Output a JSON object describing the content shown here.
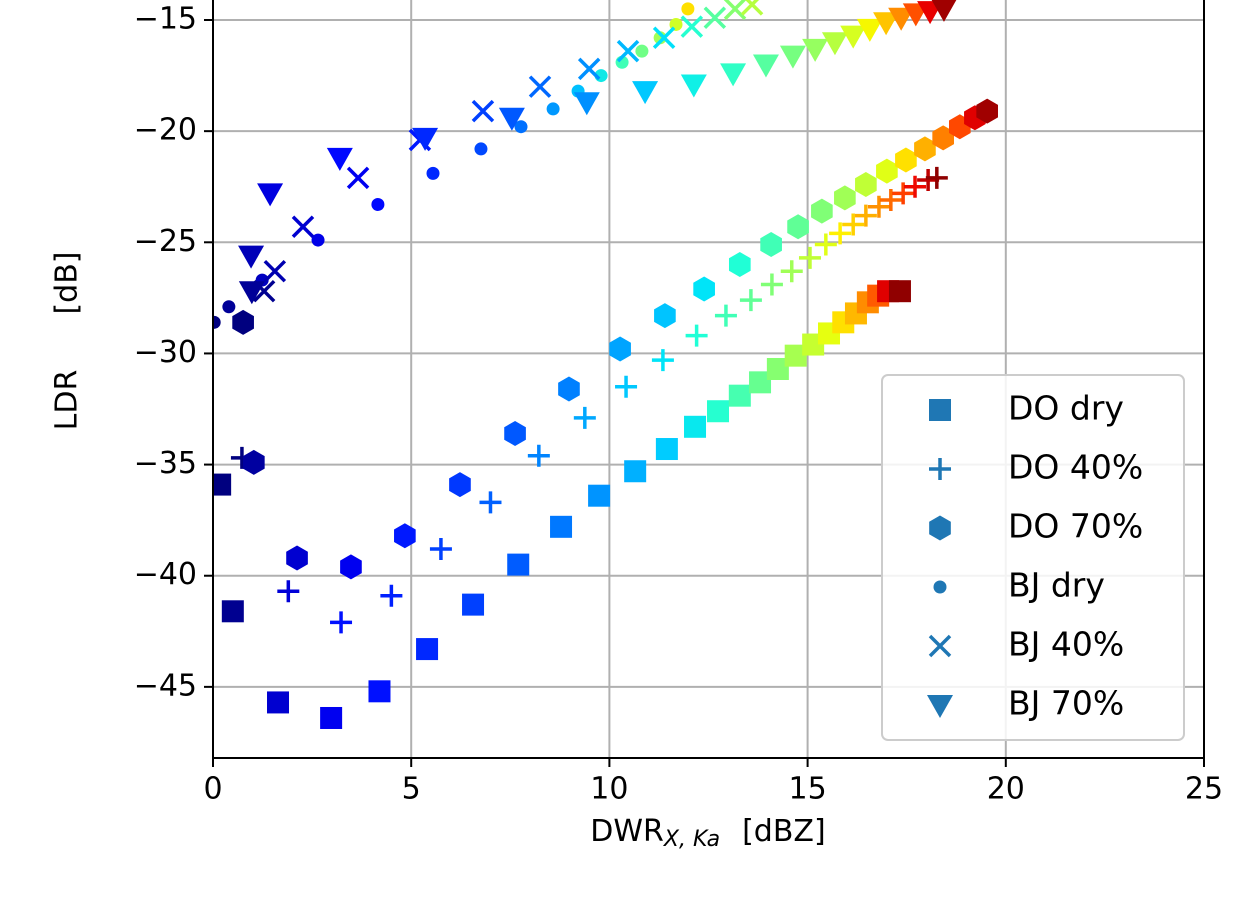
{
  "chart_data": {
    "type": "scatter",
    "xlabel": {
      "main": "DWR",
      "sub": "X, Ka",
      "unit": "[dBZ]"
    },
    "ylabel": {
      "main": "LDR",
      "unit": "[dB]"
    },
    "xlim": [
      0,
      25
    ],
    "ylim": [
      -48.2,
      -14.1
    ],
    "xticks": [
      0,
      5,
      10,
      15,
      20,
      25
    ],
    "yticks": [
      {
        "value": -45,
        "label": "−45"
      },
      {
        "value": -40,
        "label": "−40"
      },
      {
        "value": -35,
        "label": "−35"
      },
      {
        "value": -30,
        "label": "−30"
      },
      {
        "value": -25,
        "label": "−25"
      },
      {
        "value": -20,
        "label": "−20"
      },
      {
        "value": -15,
        "label": "−15"
      }
    ],
    "grid": true,
    "legend": "lower right",
    "series": [
      {
        "name": "DO dry",
        "marker": "square",
        "color": "#1f77b4",
        "x": [
          0.18,
          0.5,
          1.64,
          2.98,
          4.2,
          5.4,
          6.56,
          7.7,
          8.78,
          9.74,
          10.65,
          11.45,
          12.16,
          12.74,
          13.29,
          13.8,
          14.25,
          14.7,
          15.14,
          15.54,
          15.9,
          16.22,
          16.52,
          16.78,
          17.03,
          17.33
        ],
        "values": [
          -35.9,
          -41.6,
          -45.7,
          -46.4,
          -45.2,
          -43.3,
          -41.3,
          -39.5,
          -37.8,
          -36.4,
          -35.3,
          -34.3,
          -33.3,
          -32.6,
          -31.9,
          -31.3,
          -30.7,
          -30.1,
          -29.6,
          -29.1,
          -28.6,
          -28.2,
          -27.7,
          -27.4,
          -27.2,
          -27.2
        ],
        "colors": [
          "#00007f",
          "#000090",
          "#0000d0",
          "#0000f0",
          "#0010ff",
          "#0028ff",
          "#0040ff",
          "#005cff",
          "#0078ff",
          "#0094ff",
          "#00b0ff",
          "#00ccff",
          "#08e8ee",
          "#26ffd0",
          "#46ffb0",
          "#66ff90",
          "#86ff70",
          "#a6ff50",
          "#c6ff30",
          "#e6ff10",
          "#ffe000",
          "#ffb800",
          "#ff8c00",
          "#ff5a00",
          "#e00000",
          "#900000"
        ]
      },
      {
        "name": "DO 40%",
        "marker": "plus",
        "color": "#1f77b4",
        "x": [
          0.73,
          1.9,
          3.23,
          4.5,
          5.75,
          7.0,
          8.22,
          9.38,
          10.42,
          11.35,
          12.2,
          12.94,
          13.57,
          14.1,
          14.6,
          15.06,
          15.46,
          15.82,
          16.15,
          16.47,
          16.8,
          17.1,
          17.41,
          17.71,
          18.04,
          18.26
        ],
        "values": [
          -34.7,
          -40.7,
          -42.1,
          -40.9,
          -38.8,
          -36.7,
          -34.6,
          -32.9,
          -31.5,
          -30.3,
          -29.2,
          -28.3,
          -27.6,
          -26.9,
          -26.3,
          -25.7,
          -25.1,
          -24.6,
          -24.2,
          -23.8,
          -23.4,
          -23.1,
          -22.8,
          -22.5,
          -22.2,
          -22.1
        ],
        "colors": [
          "#00007f",
          "#0000d8",
          "#0010ff",
          "#0020ff",
          "#0040ff",
          "#0060ff",
          "#0084ff",
          "#00a8ff",
          "#00c8ff",
          "#00e4f8",
          "#20ffd6",
          "#40ffb6",
          "#60ff96",
          "#80ff76",
          "#a0ff56",
          "#c0ff36",
          "#e0ff16",
          "#fff000",
          "#ffd000",
          "#ffb000",
          "#ff9000",
          "#ff6a00",
          "#ff4000",
          "#ef0800",
          "#c00000",
          "#8f0000"
        ]
      },
      {
        "name": "DO 70%",
        "marker": "hexagon",
        "color": "#1f77b4",
        "x": [
          0.76,
          1.03,
          2.12,
          3.48,
          4.84,
          6.23,
          7.62,
          8.98,
          10.27,
          11.4,
          12.39,
          13.29,
          14.08,
          14.76,
          15.36,
          15.94,
          16.47,
          17.0,
          17.48,
          17.96,
          18.42,
          18.84,
          19.22,
          19.53
        ],
        "values": [
          -28.6,
          -34.9,
          -39.2,
          -39.6,
          -38.2,
          -35.9,
          -33.6,
          -31.6,
          -29.8,
          -28.3,
          -27.1,
          -26.0,
          -25.1,
          -24.3,
          -23.6,
          -23.0,
          -22.4,
          -21.8,
          -21.3,
          -20.8,
          -20.3,
          -19.8,
          -19.4,
          -19.1
        ],
        "colors": [
          "#00007f",
          "#0000a0",
          "#0000d0",
          "#0000f0",
          "#0018ff",
          "#0038ff",
          "#0058ff",
          "#0080ff",
          "#00a4ff",
          "#00c4ff",
          "#00e4f8",
          "#20ffd6",
          "#40ffb6",
          "#60ff96",
          "#80ff76",
          "#a0ff56",
          "#c0ff36",
          "#e0ff16",
          "#ffe000",
          "#ffb000",
          "#ff8000",
          "#ff4800",
          "#e00000",
          "#a00000"
        ]
      },
      {
        "name": "BJ dry",
        "marker": "dot",
        "color": "#1f77b4",
        "x": [
          0.03,
          0.4,
          1.24,
          2.65,
          4.16,
          5.55,
          6.76,
          7.77,
          8.58,
          9.21,
          9.79,
          10.32,
          10.82,
          11.28,
          11.68,
          11.98
        ],
        "values": [
          -28.6,
          -27.9,
          -26.7,
          -24.9,
          -23.3,
          -21.9,
          -20.8,
          -19.8,
          -19.0,
          -18.2,
          -17.5,
          -16.9,
          -16.4,
          -15.8,
          -15.2,
          -14.5
        ],
        "colors": [
          "#00007f",
          "#000098",
          "#0000c0",
          "#0000e8",
          "#0008ff",
          "#0028ff",
          "#0048ff",
          "#0070ff",
          "#0098ff",
          "#00c0ff",
          "#10e8e6",
          "#40ffb6",
          "#70ff86",
          "#a0ff56",
          "#d0ff26",
          "#ffe000"
        ]
      },
      {
        "name": "BJ 40%",
        "marker": "x",
        "color": "#1f77b4",
        "x": [
          1.29,
          1.56,
          2.27,
          3.66,
          5.22,
          6.81,
          8.25,
          9.49,
          10.47,
          11.38,
          12.08,
          12.66,
          13.17,
          13.6
        ],
        "values": [
          -27.2,
          -26.3,
          -24.3,
          -22.1,
          -20.4,
          -19.1,
          -18.0,
          -17.2,
          -16.4,
          -15.8,
          -15.3,
          -14.9,
          -14.5,
          -14.3
        ],
        "colors": [
          "#000090",
          "#0000b0",
          "#0000d0",
          "#0000f0",
          "#0018ff",
          "#0040ff",
          "#0068ff",
          "#0090ff",
          "#00b8ff",
          "#00e0fa",
          "#26ffd0",
          "#56ffa0",
          "#86ff70",
          "#b6ff40"
        ]
      },
      {
        "name": "BJ 70%",
        "marker": "triangle",
        "color": "#1f77b4",
        "x": [
          0.98,
          0.96,
          1.44,
          3.2,
          5.35,
          7.54,
          9.43,
          10.9,
          12.13,
          13.12,
          13.95,
          14.63,
          15.19,
          15.69,
          16.15,
          16.57,
          16.98,
          17.36,
          17.73,
          18.09,
          18.44
        ],
        "values": [
          -27.2,
          -25.6,
          -22.8,
          -21.2,
          -20.3,
          -19.4,
          -18.7,
          -18.2,
          -17.9,
          -17.4,
          -17.0,
          -16.6,
          -16.3,
          -16.0,
          -15.7,
          -15.4,
          -15.1,
          -14.9,
          -14.7,
          -14.6,
          -14.5
        ],
        "colors": [
          "#000098",
          "#0000b8",
          "#0000e0",
          "#0008ff",
          "#0028ff",
          "#0058ff",
          "#0090ff",
          "#00c8ff",
          "#10f0e6",
          "#30ffc6",
          "#56ffa0",
          "#76ff80",
          "#96ff60",
          "#b6ff40",
          "#d6ff20",
          "#f6f800",
          "#ffc400",
          "#ff8c00",
          "#ff5000",
          "#e80000",
          "#a00000"
        ]
      }
    ]
  }
}
